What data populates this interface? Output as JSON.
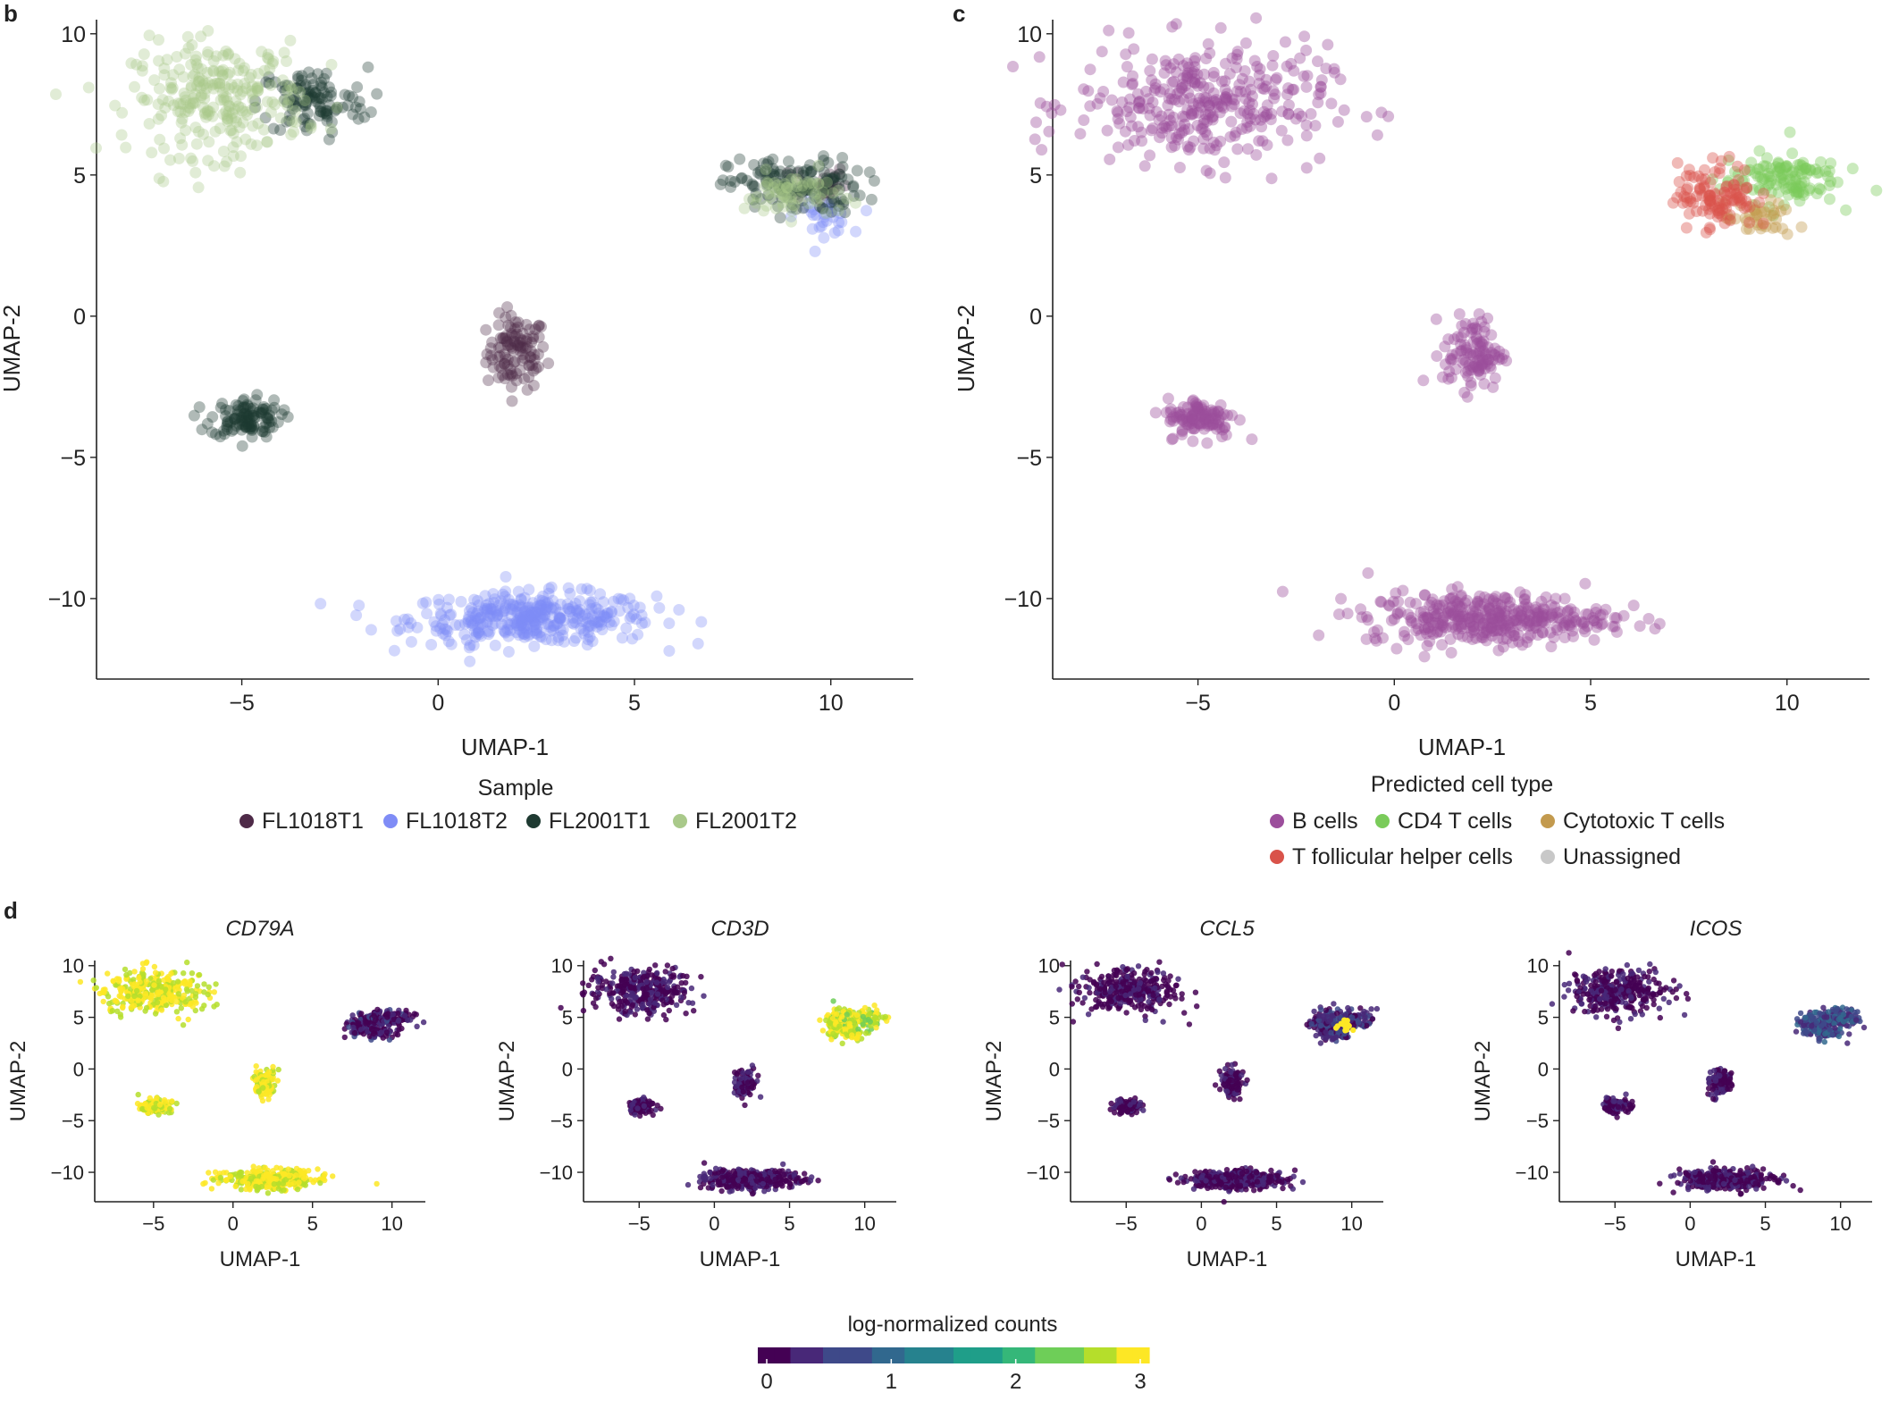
{
  "panels": {
    "b": {
      "letter": "b",
      "title": "",
      "xlabel": "UMAP-1",
      "ylabel": "UMAP-2",
      "legend_title": "Sample",
      "legend": [
        {
          "label": "FL1018T1",
          "color": "#4e2a48"
        },
        {
          "label": "FL1018T2",
          "color": "#7f8cf6"
        },
        {
          "label": "FL2001T1",
          "color": "#1e3a31"
        },
        {
          "label": "FL2001T2",
          "color": "#a9c98a"
        }
      ]
    },
    "c": {
      "letter": "c",
      "title": "",
      "xlabel": "UMAP-1",
      "ylabel": "UMAP-2",
      "legend_title": "Predicted cell type",
      "legend": [
        {
          "label": "B cells",
          "color": "#9c4e9c"
        },
        {
          "label": "CD4 T cells",
          "color": "#7acb5a"
        },
        {
          "label": "Cytotoxic T cells",
          "color": "#c39a4e"
        },
        {
          "label": "T follicular helper cells",
          "color": "#d9534a"
        },
        {
          "label": "Unassigned",
          "color": "#c8c8c8"
        }
      ]
    },
    "d": {
      "letter": "d",
      "xlabel": "UMAP-1",
      "ylabel": "UMAP-2",
      "genes": [
        "CD79A",
        "CD3D",
        "CCL5",
        "ICOS"
      ],
      "colorbar_label": "log-normalized counts",
      "colorbar_ticks": [
        "0",
        "1",
        "2",
        "3"
      ]
    }
  },
  "chart_data": [
    {
      "type": "scatter",
      "panel": "b",
      "xlabel": "UMAP-1",
      "ylabel": "UMAP-2",
      "xlim": [
        -8.7,
        12.1
      ],
      "ylim": [
        -12.85,
        10.5
      ],
      "xticks": [
        -5,
        0,
        5,
        10
      ],
      "yticks": [
        -10,
        -5,
        0,
        5,
        10
      ],
      "xtick_labels": [
        "−5",
        "0",
        "5",
        "10"
      ],
      "ytick_labels": [
        "−10",
        "−5",
        "0",
        "5",
        "10"
      ],
      "color_by": "sample",
      "series": [
        {
          "name": "FL1018T1",
          "clusters": [
            "bcell_mid",
            "tcell_dark"
          ]
        },
        {
          "name": "FL1018T2",
          "clusters": [
            "bcell_bottom",
            "tcell_blue"
          ]
        },
        {
          "name": "FL2001T1",
          "clusters": [
            "bcell_top_dark",
            "bcell_small",
            "tcell_mix"
          ]
        },
        {
          "name": "FL2001T2",
          "clusters": [
            "bcell_top_light",
            "tcell_light"
          ]
        }
      ]
    },
    {
      "type": "scatter",
      "panel": "c",
      "xlabel": "UMAP-1",
      "ylabel": "UMAP-2",
      "xlim": [
        -8.7,
        12.1
      ],
      "ylim": [
        -12.85,
        10.5
      ],
      "xticks": [
        -5,
        0,
        5,
        10
      ],
      "yticks": [
        -10,
        -5,
        0,
        5,
        10
      ],
      "xtick_labels": [
        "−5",
        "0",
        "5",
        "10"
      ],
      "ytick_labels": [
        "−10",
        "−5",
        "0",
        "5",
        "10"
      ],
      "color_by": "predicted cell type",
      "series": [
        {
          "name": "B cells",
          "clusters": [
            "bcell_top",
            "bcell_mid",
            "bcell_small",
            "bcell_bottom"
          ]
        },
        {
          "name": "CD4 T cells",
          "clusters": [
            "tcell_right"
          ]
        },
        {
          "name": "Cytotoxic T cells",
          "clusters": [
            "tcell_lower"
          ]
        },
        {
          "name": "T follicular helper cells",
          "clusters": [
            "tcell_left"
          ]
        }
      ]
    },
    {
      "type": "scatter",
      "panel": "d",
      "color_scale": "viridis",
      "color_range": [
        0,
        3
      ],
      "xlabel": "UMAP-1",
      "ylabel": "UMAP-2",
      "xlim": [
        -8.7,
        12.1
      ],
      "ylim": [
        -12.85,
        10.5
      ],
      "xticks": [
        -5,
        0,
        5,
        10
      ],
      "yticks": [
        -10,
        -5,
        0,
        5,
        10
      ],
      "xtick_labels": [
        "−5",
        "0",
        "5",
        "10"
      ],
      "ytick_labels": [
        "−10",
        "−5",
        "0",
        "5",
        "10"
      ],
      "subplots": [
        {
          "gene": "CD79A",
          "b_cluster_expression": 2.9,
          "t_cluster_expression": 0.2
        },
        {
          "gene": "CD3D",
          "b_cluster_expression": 0.05,
          "t_cluster_expression": 2.8
        },
        {
          "gene": "CCL5",
          "b_cluster_expression": 0.05,
          "t_cluster_expression": 0.4,
          "t_hotspot_expression": 3.0
        },
        {
          "gene": "ICOS",
          "b_cluster_expression": 0.05,
          "t_cluster_expression": 0.7
        }
      ]
    }
  ],
  "clusters": {
    "bcell_top_light": {
      "cx": -5.6,
      "cy": 7.7,
      "sx": 1.1,
      "sy": 1.0,
      "n": 260
    },
    "bcell_top_dark": {
      "cx": -3.2,
      "cy": 7.6,
      "sx": 0.7,
      "sy": 0.6,
      "n": 110
    },
    "bcell_top": {
      "cx": -4.9,
      "cy": 7.5,
      "sx": 1.6,
      "sy": 1.05,
      "n": 340
    },
    "bcell_mid": {
      "cx": 2.0,
      "cy": -1.3,
      "sx": 0.38,
      "sy": 0.65,
      "n": 110
    },
    "bcell_small": {
      "cx": -4.9,
      "cy": -3.6,
      "sx": 0.45,
      "sy": 0.35,
      "n": 110
    },
    "bcell_bottom": {
      "cx": 2.4,
      "cy": -10.7,
      "sx": 1.55,
      "sy": 0.45,
      "n": 380
    },
    "tcell_mix": {
      "cx": 9.1,
      "cy": 4.6,
      "sx": 0.85,
      "sy": 0.5,
      "n": 150
    },
    "tcell_light": {
      "cx": 9.0,
      "cy": 4.3,
      "sx": 0.6,
      "sy": 0.4,
      "n": 60
    },
    "tcell_dark": {
      "cx": 9.7,
      "cy": 4.7,
      "sx": 0.35,
      "sy": 0.35,
      "n": 25
    },
    "tcell_blue": {
      "cx": 9.8,
      "cy": 3.5,
      "sx": 0.35,
      "sy": 0.3,
      "n": 30
    },
    "tcell_left": {
      "cx": 8.2,
      "cy": 4.3,
      "sx": 0.5,
      "sy": 0.6,
      "n": 110
    },
    "tcell_right": {
      "cx": 9.8,
      "cy": 4.9,
      "sx": 0.75,
      "sy": 0.45,
      "n": 120
    },
    "tcell_lower": {
      "cx": 9.3,
      "cy": 3.4,
      "sx": 0.45,
      "sy": 0.3,
      "n": 40
    }
  },
  "colors": {
    "axis": "#222222",
    "viridis": [
      "#440154",
      "#482878",
      "#3e4989",
      "#31688e",
      "#26828e",
      "#1f9e89",
      "#35b779",
      "#6ece58",
      "#b5de2b",
      "#fde725"
    ]
  }
}
